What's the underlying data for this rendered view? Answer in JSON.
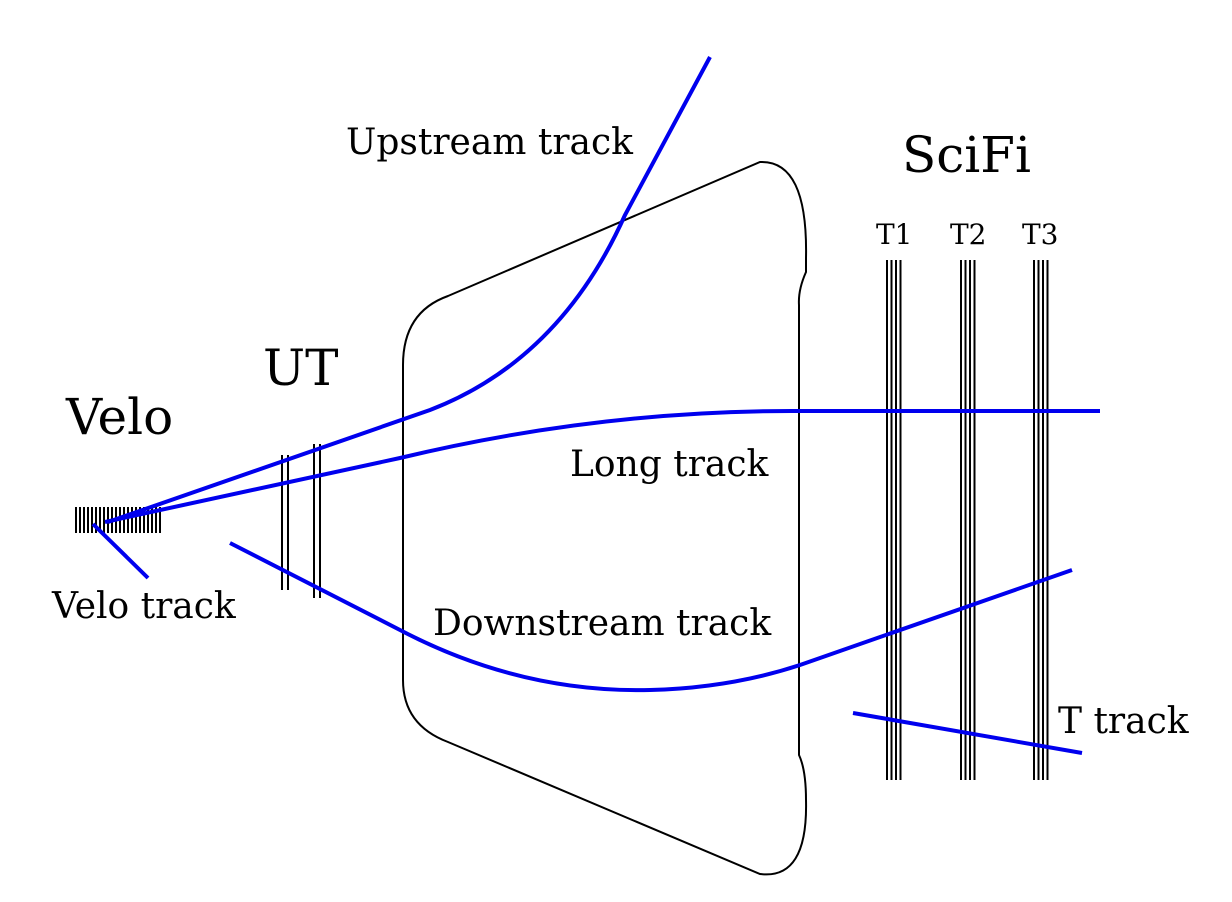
{
  "labels": {
    "velo": "Velo",
    "ut": "UT",
    "scifi": "SciFi",
    "t1": "T1",
    "t2": "T2",
    "t3": "T3",
    "upstream_track": "Upstream track",
    "long_track": "Long track",
    "velo_track": "Velo track",
    "downstream_track": "Downstream track",
    "t_track": "T track"
  },
  "colors": {
    "track": "#0000ee",
    "detector": "#000000",
    "background": "#ffffff"
  }
}
